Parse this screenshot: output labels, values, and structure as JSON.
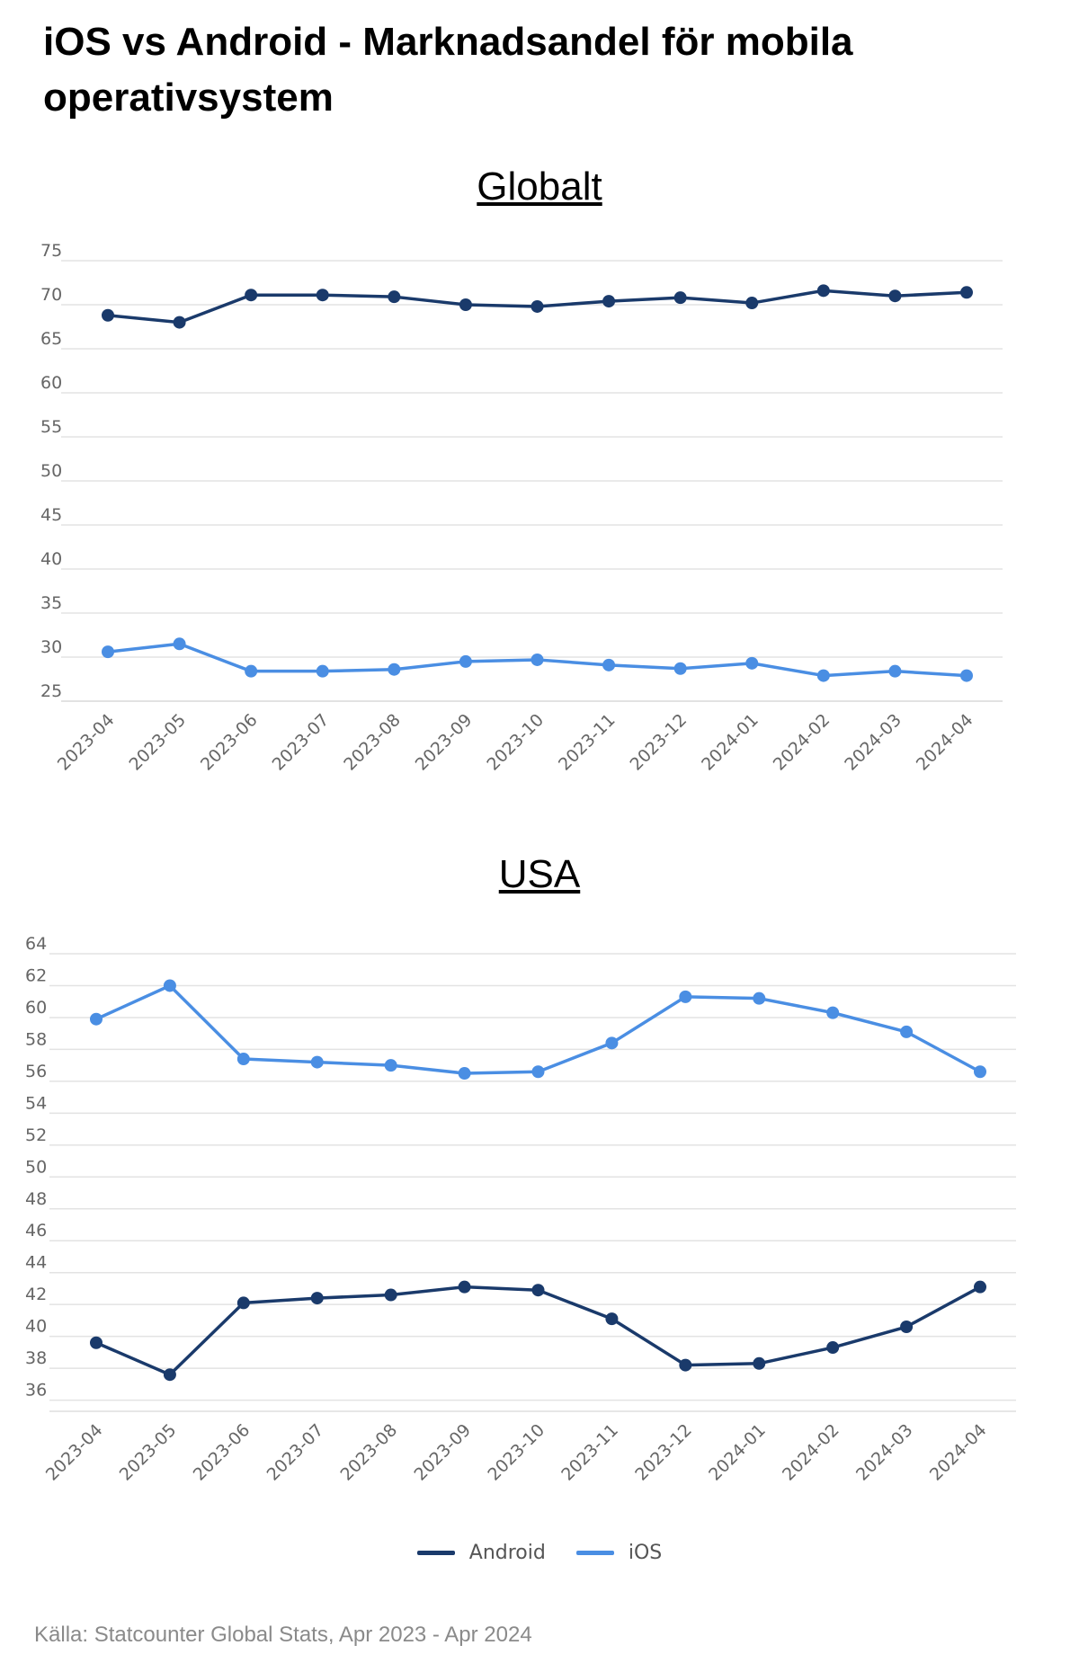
{
  "title": "iOS vs Android - Marknadsandel för mobila operativsystem",
  "source": "Källa: Statcounter Global Stats, Apr 2023 - Apr 2024",
  "colors": {
    "android": "#1a3a6b",
    "ios": "#4a8ee3",
    "grid": "#e3e3e3",
    "tick": "#666666"
  },
  "legend": [
    {
      "name": "Android",
      "color": "#1a3a6b"
    },
    {
      "name": "iOS",
      "color": "#4a8ee3"
    }
  ],
  "chart_data": [
    {
      "type": "line",
      "title": "Globalt",
      "categories": [
        "2023-04",
        "2023-05",
        "2023-06",
        "2023-07",
        "2023-08",
        "2023-09",
        "2023-10",
        "2023-11",
        "2023-12",
        "2024-01",
        "2024-02",
        "2024-03",
        "2024-04"
      ],
      "yticks": [
        25,
        30,
        35,
        40,
        45,
        50,
        55,
        60,
        65,
        70,
        75
      ],
      "ylim": [
        25,
        75
      ],
      "grid": true,
      "series": [
        {
          "name": "Android",
          "color": "#1a3a6b",
          "values": [
            68.8,
            68.0,
            71.1,
            71.1,
            70.9,
            70.0,
            69.8,
            70.4,
            70.8,
            70.2,
            71.6,
            71.0,
            71.4
          ]
        },
        {
          "name": "iOS",
          "color": "#4a8ee3",
          "values": [
            30.6,
            31.5,
            28.4,
            28.4,
            28.6,
            29.5,
            29.7,
            29.1,
            28.7,
            29.3,
            27.9,
            28.4,
            27.9
          ]
        }
      ]
    },
    {
      "type": "line",
      "title": "USA",
      "categories": [
        "2023-04",
        "2023-05",
        "2023-06",
        "2023-07",
        "2023-08",
        "2023-09",
        "2023-10",
        "2023-11",
        "2023-12",
        "2024-01",
        "2024-02",
        "2024-03",
        "2024-04"
      ],
      "yticks": [
        36,
        38,
        40,
        42,
        44,
        46,
        48,
        50,
        52,
        54,
        56,
        58,
        60,
        62,
        64
      ],
      "ylim": [
        35.3,
        64
      ],
      "grid": true,
      "series": [
        {
          "name": "Android",
          "color": "#1a3a6b",
          "values": [
            39.6,
            37.6,
            42.1,
            42.4,
            42.6,
            43.1,
            42.9,
            41.1,
            38.2,
            38.3,
            39.3,
            40.6,
            43.1
          ]
        },
        {
          "name": "iOS",
          "color": "#4a8ee3",
          "values": [
            59.9,
            62.0,
            57.4,
            57.2,
            57.0,
            56.5,
            56.6,
            58.4,
            61.3,
            61.2,
            60.3,
            59.1,
            56.6
          ]
        }
      ]
    }
  ]
}
